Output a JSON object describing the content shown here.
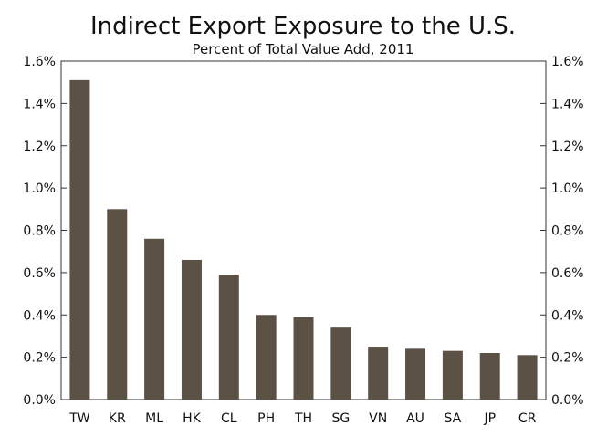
{
  "chart_data": {
    "type": "bar",
    "title": "Indirect Export Exposure to the U.S.",
    "subtitle": "Percent of Total Value Add, 2011",
    "xlabel": "",
    "ylabel": "",
    "ylim": [
      0,
      1.6
    ],
    "yticks": [
      0.0,
      0.2,
      0.4,
      0.6,
      0.8,
      1.0,
      1.2,
      1.4,
      1.6
    ],
    "ytick_labels": [
      "0.0%",
      "0.2%",
      "0.4%",
      "0.6%",
      "0.8%",
      "1.0%",
      "1.2%",
      "1.4%",
      "1.6%"
    ],
    "categories": [
      "TW",
      "KR",
      "ML",
      "HK",
      "CL",
      "PH",
      "TH",
      "SG",
      "VN",
      "AU",
      "SA",
      "JP",
      "CR"
    ],
    "values": [
      1.51,
      0.9,
      0.76,
      0.66,
      0.59,
      0.4,
      0.39,
      0.34,
      0.25,
      0.24,
      0.23,
      0.22,
      0.21
    ],
    "bar_color": "#5c5145",
    "axis_color": "#333333",
    "grid": false,
    "legend": "none",
    "right_axis_mirrored": true
  }
}
